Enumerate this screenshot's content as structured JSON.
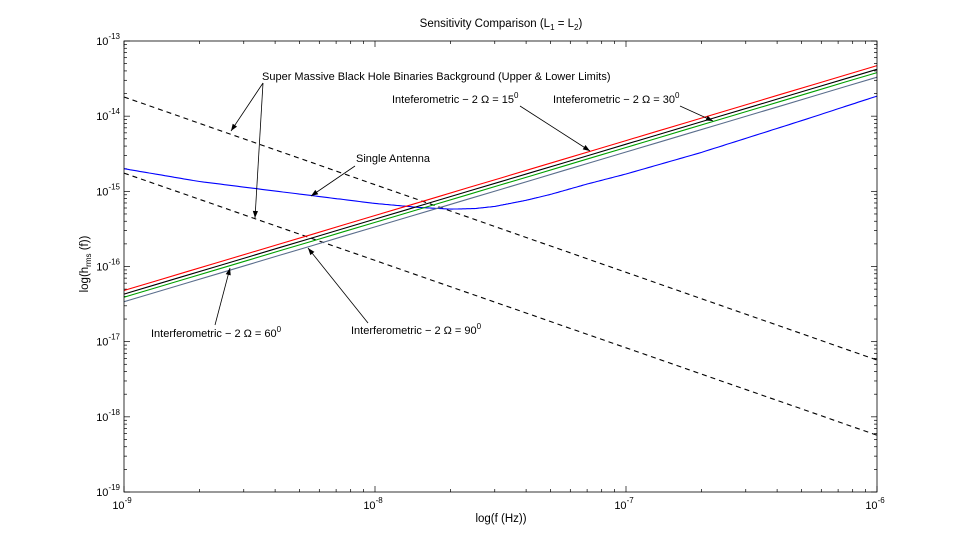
{
  "chart_data": {
    "type": "line",
    "title": "Sensitivity Comparison (L",
    "title_sub1": "1",
    "title_mid": " = L",
    "title_sub2": "2",
    "title_end": ")",
    "xlabel": "log(f (Hz))",
    "ylabel_pre": "log(h",
    "ylabel_sub": "rms",
    "ylabel_post": " (f))",
    "x_scale": "log",
    "y_scale": "log",
    "xlim": [
      1e-09,
      1e-06
    ],
    "ylim": [
      1e-19,
      1e-13
    ],
    "grid": false,
    "x_ticks": [
      {
        "base": "10",
        "exp": "-9",
        "value": 1e-09
      },
      {
        "base": "10",
        "exp": "-8",
        "value": 1e-08
      },
      {
        "base": "10",
        "exp": "-7",
        "value": 1e-07
      },
      {
        "base": "10",
        "exp": "-6",
        "value": 1e-06
      }
    ],
    "y_ticks": [
      {
        "base": "10",
        "exp": "-19",
        "value": 1e-19
      },
      {
        "base": "10",
        "exp": "-18",
        "value": 1e-18
      },
      {
        "base": "10",
        "exp": "-17",
        "value": 1e-17
      },
      {
        "base": "10",
        "exp": "-16",
        "value": 1e-16
      },
      {
        "base": "10",
        "exp": "-15",
        "value": 1e-15
      },
      {
        "base": "10",
        "exp": "-14",
        "value": 1e-14
      },
      {
        "base": "10",
        "exp": "-13",
        "value": 1e-13
      }
    ],
    "series": [
      {
        "key": "bg_upper",
        "color": "#000000",
        "dash": "5,4",
        "x": [
          1e-09,
          1e-06
        ],
        "y": [
          1.8e-14,
          5.7e-18
        ]
      },
      {
        "key": "bg_lower",
        "color": "#000000",
        "dash": "5,4",
        "x": [
          1e-09,
          1e-06
        ],
        "y": [
          1.75e-15,
          5.7e-19
        ]
      },
      {
        "key": "single",
        "color": "#0000ff",
        "x": [
          1e-09,
          2e-09,
          5e-09,
          1e-08,
          1.5e-08,
          2e-08,
          2.5e-08,
          3e-08,
          4e-08,
          5e-08,
          7e-08,
          1e-07,
          2e-07,
          5e-07,
          1e-06
        ],
        "y": [
          2e-15,
          1.35e-15,
          9.2e-16,
          6.9e-16,
          6.1e-16,
          5.8e-16,
          5.9e-16,
          6.3e-16,
          7.6e-16,
          9.1e-16,
          1.25e-15,
          1.7e-15,
          3.3e-15,
          8.7e-15,
          1.85e-14
        ]
      },
      {
        "key": "int15",
        "color": "#ff0000",
        "x": [
          1e-09,
          1e-06
        ],
        "y": [
          4.8e-17,
          4.7e-14
        ]
      },
      {
        "key": "int30",
        "color": "#000000",
        "x": [
          1e-09,
          1e-06
        ],
        "y": [
          4.3e-17,
          4.2e-14
        ]
      },
      {
        "key": "int60",
        "color": "#00a000",
        "x": [
          1e-09,
          1e-06
        ],
        "y": [
          3.9e-17,
          3.8e-14
        ]
      },
      {
        "key": "int90",
        "color": "#5a6e8c",
        "x": [
          1e-09,
          1e-06
        ],
        "y": [
          3.4e-17,
          3.3e-14
        ]
      }
    ],
    "annotations": [
      {
        "key": "bg",
        "text": "Super Massive Black Hole Binaries Background (Upper & Lower Limits)",
        "sup": ""
      },
      {
        "key": "single",
        "text": "Single Antenna",
        "sup": ""
      },
      {
        "key": "int15",
        "text": "Inteferometric − 2 Ω = 15",
        "sup": "0"
      },
      {
        "key": "int30",
        "text": "Inteferometric − 2 Ω = 30",
        "sup": "0"
      },
      {
        "key": "int60",
        "text": "Interferometric − 2 Ω = 60",
        "sup": "0"
      },
      {
        "key": "int90",
        "text": "Interferometric − 2 Ω = 90",
        "sup": "0"
      }
    ]
  }
}
